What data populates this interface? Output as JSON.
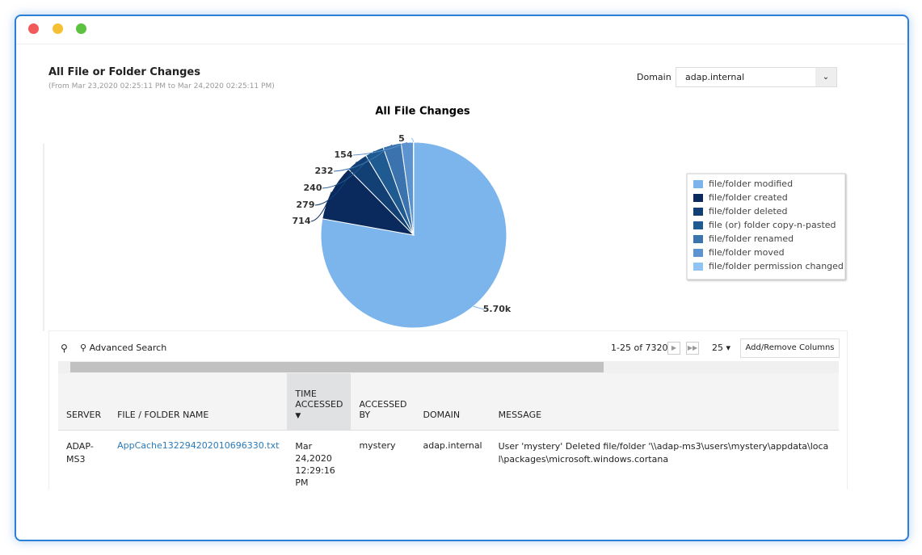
{
  "header": {
    "title": "All File or Folder Changes",
    "subtitle": "(From Mar 23,2020 02:25:11 PM to Mar 24,2020 02:25:11 PM)",
    "domain_label": "Domain",
    "domain_value": "adap.internal"
  },
  "chart_data": {
    "type": "pie",
    "title": "All File Changes",
    "categories": [
      "file/folder modified",
      "file/folder created",
      "file/folder deleted",
      "file (or) folder copy-n-pasted",
      "file/folder renamed",
      "file/folder moved",
      "file/folder permission changed"
    ],
    "values": [
      5700,
      714,
      279,
      240,
      232,
      154,
      5
    ],
    "value_labels": [
      "5.70k",
      "714",
      "279",
      "240",
      "232",
      "154",
      "5"
    ],
    "colors": [
      "#7cb5ec",
      "#0a2a5e",
      "#123f74",
      "#1f5a91",
      "#3b73ae",
      "#5d93cf",
      "#8fc3f2"
    ],
    "legend": "right"
  },
  "toolbar": {
    "search": "Advanced Search",
    "pagination": "1-25 of 7320",
    "page_size": "25",
    "columns_button": "Add/Remove Columns"
  },
  "table": {
    "headers": [
      "SERVER",
      "FILE / FOLDER NAME",
      "TIME ACCESSED",
      "ACCESSED BY",
      "DOMAIN",
      "MESSAGE"
    ],
    "rows": [
      [
        "ADAP-MS3",
        "AppCache132294202010696330.txt",
        "Mar 24,2020 12:29:16 PM",
        "mystery",
        "adap.internal",
        "User 'mystery' Deleted file/folder '\\\\adap-ms3\\users\\mystery\\appdata\\local\\packages\\microsoft.windows.cortana"
      ]
    ]
  }
}
